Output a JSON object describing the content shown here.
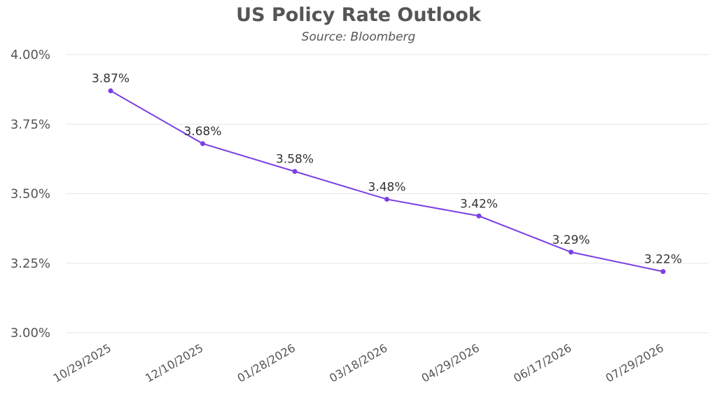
{
  "chart_data": {
    "type": "line",
    "title": "US Policy Rate Outlook",
    "subtitle": "Source: Bloomberg",
    "xlabel": "",
    "ylabel": "",
    "categories": [
      "10/29/2025",
      "12/10/2025",
      "01/28/2026",
      "03/18/2026",
      "04/29/2026",
      "06/17/2026",
      "07/29/2026"
    ],
    "series": [
      {
        "values": [
          3.87,
          3.68,
          3.58,
          3.48,
          3.42,
          3.29,
          3.22
        ],
        "labels": [
          "3.87%",
          "3.68%",
          "3.58%",
          "3.48%",
          "3.42%",
          "3.29%",
          "3.22%"
        ],
        "color": "#7b3fe4"
      }
    ],
    "ylim": [
      3.0,
      4.0
    ],
    "yticks": [
      3.0,
      3.25,
      3.5,
      3.75,
      4.0
    ],
    "ytick_labels": [
      "3.00%",
      "3.25%",
      "3.50%",
      "3.75%",
      "4.00%"
    ],
    "grid": true,
    "legend": "none",
    "grid_color": "#e6e6e6"
  }
}
